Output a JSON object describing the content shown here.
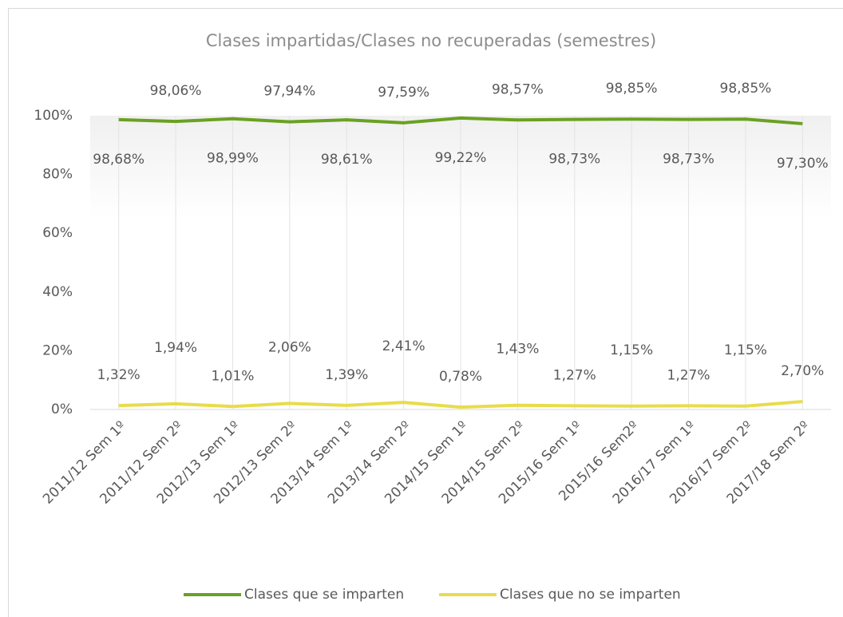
{
  "chart_data": {
    "type": "line",
    "title": "Clases impartidas/Clases no recuperadas (semestres)",
    "categories": [
      "2011/12 Sem 1º",
      "2011/12 Sem 2º",
      "2012/13 Sem 1º",
      "2012/13 Sem 2º",
      "2013/14 Sem 1º",
      "2013/14 Sem 2º",
      "2014/15 Sem 1º",
      "2014/15 Sem 2º",
      "2015/16 Sem 1º",
      "2015/16 Sem2º",
      "2016/17 Sem 1º",
      "2016/17 Sem 2º",
      "2017/18 Sem 2º"
    ],
    "series": [
      {
        "name": "Clases que se imparten",
        "color": "#6aa121",
        "values": [
          98.68,
          98.06,
          98.99,
          97.94,
          98.61,
          97.59,
          99.22,
          98.57,
          98.73,
          98.85,
          98.73,
          98.85,
          97.3
        ],
        "value_labels": [
          "98,68%",
          "98,06%",
          "98,99%",
          "97,94%",
          "98,61%",
          "97,59%",
          "99,22%",
          "98,57%",
          "98,73%",
          "98,85%",
          "98,73%",
          "98,85%",
          "97,30%"
        ]
      },
      {
        "name": "Clases que no se imparten",
        "color": "#e8dc4a",
        "values": [
          1.32,
          1.94,
          1.01,
          2.06,
          1.39,
          2.41,
          0.78,
          1.43,
          1.27,
          1.15,
          1.27,
          1.15,
          2.7
        ],
        "value_labels": [
          "1,32%",
          "1,94%",
          "1,01%",
          "2,06%",
          "1,39%",
          "2,41%",
          "0,78%",
          "1,43%",
          "1,27%",
          "1,15%",
          "1,27%",
          "1,15%",
          "2,70%"
        ]
      }
    ],
    "ylim": [
      0,
      100
    ],
    "yticks": [
      {
        "value": 0,
        "label": "0%"
      },
      {
        "value": 20,
        "label": "20%"
      },
      {
        "value": 40,
        "label": "40%"
      },
      {
        "value": 60,
        "label": "60%"
      },
      {
        "value": 80,
        "label": "80%"
      },
      {
        "value": 100,
        "label": "100%"
      }
    ],
    "grid": "x",
    "legend": "bottom"
  }
}
